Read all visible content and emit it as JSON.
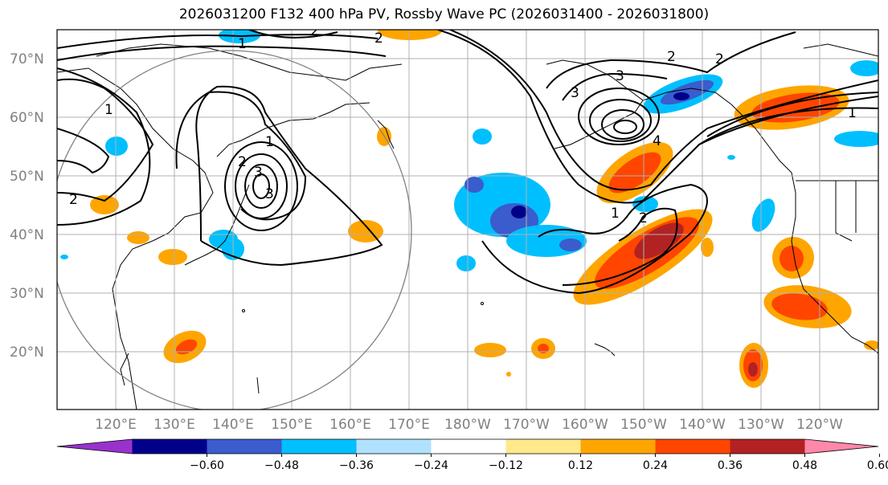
{
  "title": "2026031200 F132 400 hPa PV, Rossby Wave PC (2026031400 - 2026031800)",
  "latitudes": [
    "70°N",
    "60°N",
    "50°N",
    "40°N",
    "30°N",
    "20°N"
  ],
  "longitudes": [
    "120°E",
    "130°E",
    "140°E",
    "150°E",
    "160°E",
    "170°E",
    "180°W",
    "170°W",
    "160°W",
    "150°W",
    "140°W",
    "130°W",
    "120°W"
  ],
  "colorbar": {
    "ticks": [
      "−0.60",
      "−0.48",
      "−0.36",
      "−0.24",
      "−0.12",
      "0.12",
      "0.24",
      "0.36",
      "0.48",
      "0.60"
    ],
    "colors": [
      "#9932cc",
      "#00008b",
      "#3a5ccc",
      "#00bfff",
      "#b0e2ff",
      "#ffffff",
      "#ffe98a",
      "#ffa500",
      "#ff4500",
      "#b22222",
      "#ff88aa"
    ]
  },
  "contour_labels": [
    "2",
    "1",
    "2",
    "2",
    "2",
    "3",
    "3",
    "1",
    "1",
    "2",
    "3",
    "3",
    "4",
    "2",
    "1",
    "1",
    "2"
  ]
}
